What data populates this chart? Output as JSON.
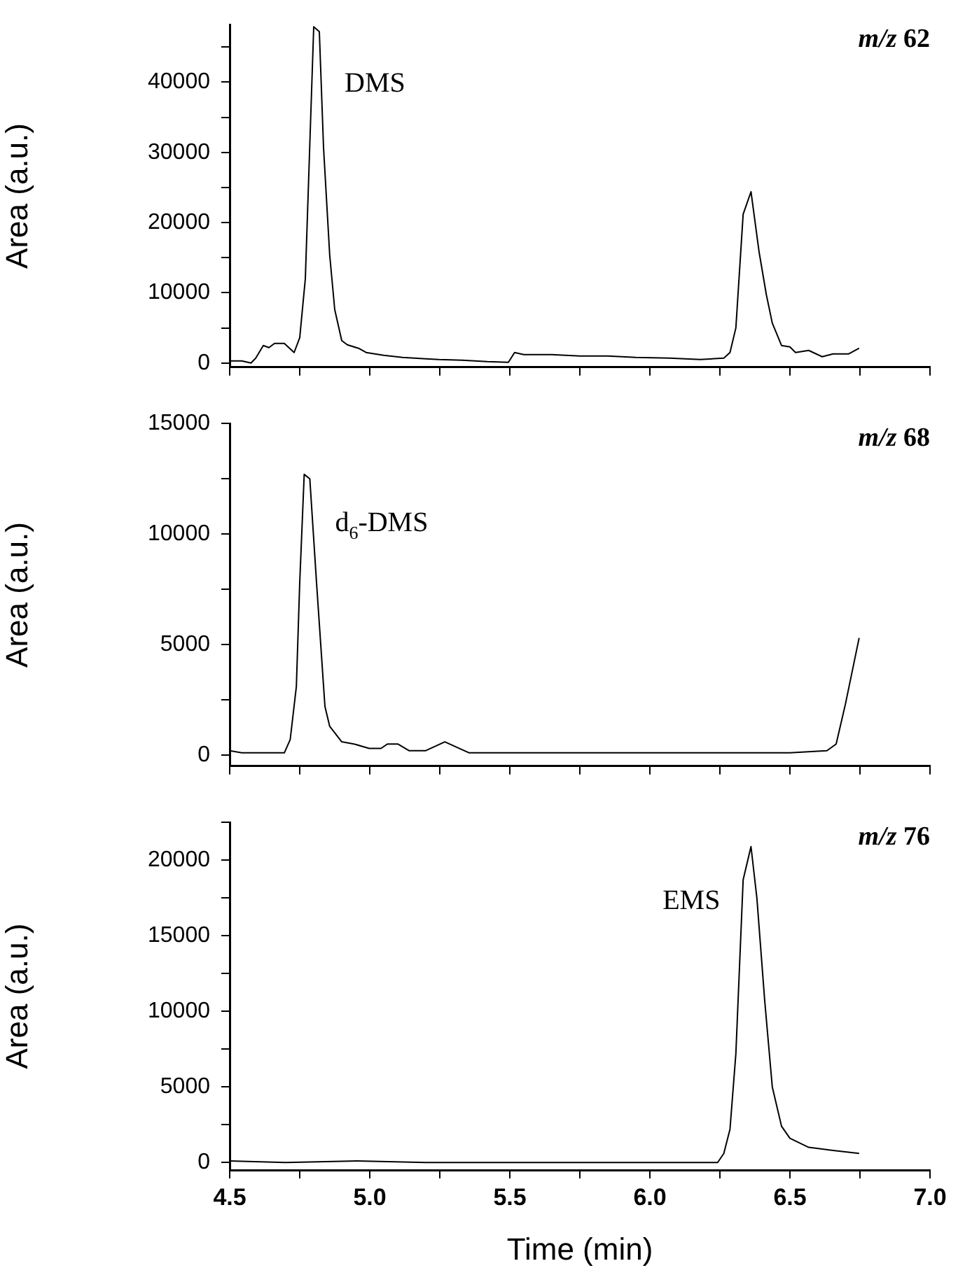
{
  "chart_data": [
    {
      "type": "line",
      "ylabel": "Area (a.u.)",
      "annotations": [
        "m/z 62",
        "DMS"
      ],
      "xlim": [
        4.5,
        7.0
      ],
      "xticks": [
        4.5,
        {
          "value": 4.75,
          "label": null
        },
        5,
        {
          "value": 5.25,
          "label": null
        },
        5.5,
        {
          "value": 5.75,
          "label": null
        },
        6,
        {
          "value": 6.25,
          "label": null
        },
        6.5,
        {
          "value": 6.75,
          "label": null
        },
        7
      ],
      "ylim": [
        -600,
        48200
      ],
      "yticks": [
        0,
        {
          "value": 5000,
          "label": null
        },
        10000,
        {
          "value": 15000,
          "label": null
        },
        20000,
        {
          "value": 25000,
          "label": null
        },
        30000,
        {
          "value": 35000,
          "label": null
        },
        40000,
        {
          "value": 45000,
          "label": null
        }
      ],
      "tick_labels": "y",
      "marker": "none",
      "line_style": "solid",
      "series": [
        {
          "color": "#000000",
          "x": [
            4.5,
            4.543,
            4.576,
            4.593,
            4.62,
            4.64,
            4.66,
            4.695,
            4.73,
            4.75,
            4.77,
            4.8,
            4.82,
            4.835,
            4.857,
            4.875,
            4.9,
            4.92,
            4.96,
            4.987,
            5.05,
            5.117,
            5.2,
            5.247,
            5.33,
            5.42,
            5.495,
            5.517,
            5.55,
            5.65,
            5.75,
            5.85,
            5.95,
            6.07,
            6.18,
            6.264,
            6.286,
            6.307,
            6.333,
            6.361,
            6.39,
            6.416,
            6.437,
            6.47,
            6.5,
            6.52,
            6.567,
            6.615,
            6.654,
            6.71,
            6.747
          ],
          "values": [
            300,
            300,
            0,
            700,
            2500,
            2200,
            2800,
            2800,
            1500,
            3600,
            12000,
            47900,
            47200,
            30700,
            15400,
            7600,
            3200,
            2600,
            2100,
            1500,
            1100,
            800,
            600,
            500,
            400,
            200,
            100,
            1500,
            1200,
            1200,
            1000,
            1000,
            800,
            700,
            500,
            700,
            1500,
            5000,
            21200,
            24400,
            15800,
            9700,
            5700,
            2500,
            2300,
            1500,
            1800,
            900,
            1300,
            1300,
            2100
          ]
        }
      ]
    },
    {
      "type": "line",
      "ylabel": "Area (a.u.)",
      "annotations": [
        "m/z 68",
        "d$_{6}$-DMS"
      ],
      "xlim": [
        4.5,
        7.0
      ],
      "xticks": [
        4.5,
        {
          "value": 4.75,
          "label": null
        },
        5,
        {
          "value": 5.25,
          "label": null
        },
        5.5,
        {
          "value": 5.75,
          "label": null
        },
        6,
        {
          "value": 6.25,
          "label": null
        },
        6.5,
        {
          "value": 6.75,
          "label": null
        },
        7
      ],
      "ylim": [
        -500,
        15000
      ],
      "yticks": [
        0,
        {
          "value": 2500,
          "label": null
        },
        5000,
        {
          "value": 7500,
          "label": null
        },
        10000,
        {
          "value": 12500,
          "label": null
        },
        15000
      ],
      "tick_labels": "y",
      "marker": "none",
      "line_style": "solid",
      "series": [
        {
          "color": "#000000",
          "x": [
            4.5,
            4.543,
            4.6,
            4.695,
            4.716,
            4.738,
            4.75,
            4.766,
            4.786,
            4.81,
            4.84,
            4.857,
            4.9,
            4.944,
            4.998,
            5.04,
            5.063,
            5.1,
            5.14,
            5.2,
            5.268,
            5.355,
            5.42,
            5.6,
            5.8,
            6.0,
            6.2,
            6.37,
            6.5,
            6.632,
            6.665,
            6.698,
            6.747
          ],
          "values": [
            200,
            100,
            100,
            100,
            700,
            3100,
            7800,
            12700,
            12500,
            7800,
            2200,
            1300,
            600,
            500,
            300,
            300,
            500,
            500,
            200,
            200,
            600,
            100,
            100,
            100,
            100,
            100,
            100,
            100,
            100,
            200,
            500,
            2300,
            5300
          ]
        }
      ]
    },
    {
      "type": "line",
      "ylabel": "Area (a.u.)",
      "xlabel": "Time (min)",
      "annotations": [
        "m/z 76",
        "EMS"
      ],
      "xlim": [
        4.5,
        7.0
      ],
      "xticks": [
        4.5,
        {
          "value": 4.75,
          "label": null
        },
        {
          "value": 5.0,
          "label": "5.0"
        },
        {
          "value": 5.25,
          "label": null
        },
        5.5,
        {
          "value": 5.75,
          "label": null
        },
        {
          "value": 6.0,
          "label": "6.0"
        },
        {
          "value": 6.25,
          "label": null
        },
        6.5,
        {
          "value": 6.75,
          "label": null
        },
        {
          "value": 7.0,
          "label": "7.0"
        }
      ],
      "ylim": [
        -500,
        22500
      ],
      "yticks": [
        0,
        {
          "value": 2500,
          "label": null
        },
        5000,
        {
          "value": 7500,
          "label": null
        },
        10000,
        {
          "value": 12500,
          "label": null
        },
        15000,
        {
          "value": 17500,
          "label": null
        },
        20000,
        {
          "value": 22500,
          "label": null
        }
      ],
      "marker": "none",
      "line_style": "solid",
      "series": [
        {
          "color": "#000000",
          "x": [
            4.5,
            4.7,
            4.955,
            5.2,
            5.5,
            5.8,
            6.1,
            6.242,
            6.264,
            6.286,
            6.307,
            6.333,
            6.361,
            6.382,
            6.41,
            6.437,
            6.47,
            6.5,
            6.567,
            6.654,
            6.747
          ],
          "values": [
            100,
            0,
            100,
            0,
            0,
            0,
            0,
            0,
            600,
            2200,
            7200,
            18700,
            20900,
            17500,
            10700,
            5000,
            2400,
            1600,
            1000,
            800,
            600
          ]
        }
      ]
    }
  ]
}
